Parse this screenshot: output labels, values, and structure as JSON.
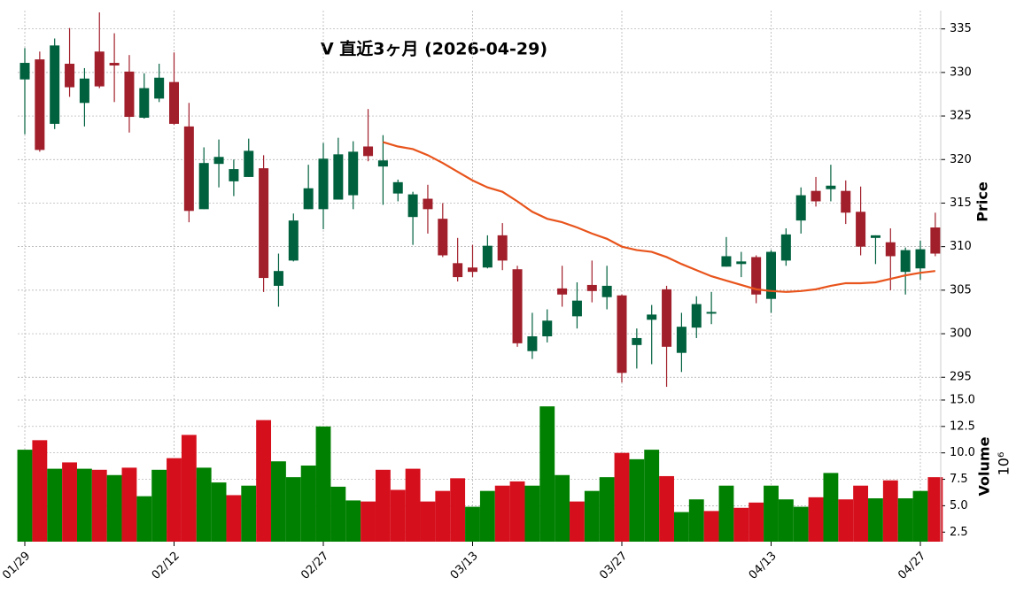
{
  "chart_data": [
    {
      "type": "candlestick",
      "title": "V 直近3ヶ月 (2026-04-29)",
      "y_label": "Price",
      "categories": [
        "01/29",
        null,
        null,
        null,
        null,
        null,
        null,
        null,
        null,
        null,
        "02/12",
        null,
        null,
        null,
        null,
        null,
        null,
        null,
        null,
        null,
        "02/27",
        null,
        null,
        null,
        null,
        null,
        null,
        null,
        null,
        null,
        "03/13",
        null,
        null,
        null,
        null,
        null,
        null,
        null,
        null,
        null,
        "03/27",
        null,
        null,
        null,
        null,
        null,
        null,
        null,
        null,
        null,
        "04/13",
        null,
        null,
        null,
        null,
        null,
        null,
        null,
        null,
        null,
        "04/27",
        null
      ],
      "open": [
        329.2,
        331.5,
        324.1,
        331.0,
        326.5,
        332.4,
        331.1,
        330.1,
        324.8,
        327.0,
        328.9,
        323.8,
        314.3,
        319.5,
        317.5,
        318.0,
        319.0,
        305.5,
        308.4,
        314.3,
        314.3,
        315.4,
        315.9,
        321.5,
        319.2,
        316.1,
        313.4,
        315.5,
        313.2,
        308.1,
        307.6,
        307.6,
        311.3,
        307.4,
        298.0,
        299.7,
        305.2,
        302.0,
        305.6,
        304.2,
        304.4,
        298.7,
        301.6,
        305.1,
        297.8,
        300.7,
        302.3,
        307.7,
        308.0,
        308.8,
        304.0,
        308.4,
        313.0,
        316.4,
        316.6,
        316.4,
        314.0,
        311.0,
        310.5,
        307.1,
        307.5,
        312.2
      ],
      "high": [
        332.8,
        332.4,
        333.9,
        335.1,
        330.5,
        336.9,
        334.5,
        332.0,
        329.9,
        331.0,
        332.3,
        326.5,
        321.4,
        322.3,
        320.0,
        322.4,
        320.5,
        309.2,
        313.8,
        319.4,
        321.9,
        322.5,
        322.1,
        325.8,
        322.8,
        317.7,
        316.3,
        317.1,
        315.0,
        311.0,
        310.2,
        311.3,
        312.7,
        307.8,
        302.4,
        302.8,
        307.8,
        305.9,
        308.4,
        307.8,
        304.5,
        300.6,
        303.3,
        305.5,
        302.4,
        304.3,
        304.8,
        311.1,
        309.4,
        309.0,
        309.6,
        312.1,
        316.8,
        318.0,
        319.4,
        317.6,
        316.9,
        311.3,
        312.1,
        309.9,
        310.7,
        313.9
      ],
      "low": [
        322.9,
        320.9,
        323.5,
        327.2,
        323.8,
        328.2,
        326.6,
        323.1,
        324.7,
        326.6,
        324.0,
        312.8,
        314.3,
        316.8,
        315.8,
        318.0,
        304.8,
        303.1,
        308.3,
        314.3,
        312.0,
        315.4,
        314.3,
        319.8,
        314.8,
        315.2,
        310.2,
        311.5,
        308.8,
        306.0,
        306.5,
        307.5,
        307.3,
        298.5,
        297.1,
        299.0,
        303.1,
        300.6,
        303.6,
        302.8,
        294.4,
        296.0,
        296.5,
        293.9,
        295.6,
        299.5,
        301.1,
        307.7,
        306.5,
        303.5,
        302.4,
        307.8,
        311.5,
        314.6,
        315.2,
        312.6,
        309.0,
        308.0,
        305.0,
        304.5,
        306.2,
        308.9
      ],
      "close": [
        331.1,
        321.1,
        333.1,
        328.3,
        329.3,
        328.4,
        330.8,
        324.9,
        328.2,
        329.4,
        324.1,
        314.1,
        319.6,
        320.3,
        318.9,
        321.0,
        306.4,
        307.2,
        313.0,
        316.7,
        320.1,
        320.6,
        320.9,
        320.4,
        319.9,
        317.4,
        316.0,
        314.3,
        309.0,
        306.5,
        307.1,
        310.1,
        308.4,
        298.9,
        299.7,
        301.5,
        304.5,
        303.8,
        304.9,
        305.5,
        295.5,
        299.5,
        302.2,
        298.5,
        300.8,
        303.4,
        302.5,
        308.9,
        308.3,
        304.5,
        309.4,
        311.4,
        315.9,
        315.2,
        317.0,
        313.9,
        310.0,
        311.3,
        308.9,
        309.6,
        309.7,
        309.2
      ],
      "up_color": "#00613e",
      "down_color": "#a11f2b",
      "ma_values": [
        null,
        null,
        null,
        null,
        null,
        null,
        null,
        null,
        null,
        null,
        null,
        null,
        null,
        null,
        null,
        null,
        null,
        null,
        null,
        null,
        null,
        null,
        null,
        null,
        322.0,
        321.5,
        321.2,
        320.5,
        319.6,
        318.6,
        317.6,
        316.8,
        316.3,
        315.2,
        314.0,
        313.2,
        312.8,
        312.2,
        311.5,
        310.9,
        310.0,
        309.6,
        309.4,
        308.8,
        308.0,
        307.3,
        306.6,
        306.1,
        305.6,
        305.1,
        304.9,
        304.8,
        304.9,
        305.1,
        305.5,
        305.8,
        305.8,
        305.9,
        306.3,
        306.7,
        307.0,
        307.2
      ],
      "ma_color": "#e8541c",
      "ylim": [
        293.5,
        337.1
      ],
      "yticks": [
        295,
        300,
        305,
        310,
        315,
        320,
        325,
        330,
        335
      ],
      "grid": true
    },
    {
      "type": "bar",
      "y_label": "Volume",
      "scale_label": "10⁶",
      "values": [
        10.3,
        11.2,
        8.5,
        9.1,
        8.5,
        8.4,
        7.9,
        8.6,
        5.9,
        8.4,
        9.5,
        11.7,
        8.6,
        7.2,
        6.0,
        6.9,
        13.1,
        9.2,
        7.7,
        8.8,
        12.5,
        6.8,
        5.5,
        5.4,
        8.4,
        6.5,
        8.5,
        5.4,
        6.4,
        7.6,
        4.9,
        6.4,
        6.9,
        7.3,
        6.9,
        14.4,
        7.9,
        5.4,
        6.4,
        7.7,
        10.0,
        9.4,
        10.3,
        7.8,
        4.4,
        5.6,
        4.5,
        6.9,
        4.8,
        5.3,
        6.9,
        5.6,
        4.9,
        5.8,
        8.1,
        5.6,
        6.9,
        5.7,
        7.4,
        5.7,
        6.4,
        7.7
      ],
      "colors": [
        "#008000",
        "#d60f1c",
        "#008000",
        "#d60f1c",
        "#008000",
        "#d60f1c",
        "#008000",
        "#d60f1c",
        "#008000",
        "#008000",
        "#d60f1c",
        "#d60f1c",
        "#008000",
        "#008000",
        "#d60f1c",
        "#008000",
        "#d60f1c",
        "#008000",
        "#008000",
        "#008000",
        "#008000",
        "#008000",
        "#008000",
        "#d60f1c",
        "#d60f1c",
        "#d60f1c",
        "#d60f1c",
        "#d60f1c",
        "#d60f1c",
        "#d60f1c",
        "#008000",
        "#008000",
        "#d60f1c",
        "#d60f1c",
        "#008000",
        "#008000",
        "#008000",
        "#d60f1c",
        "#008000",
        "#008000",
        "#d60f1c",
        "#008000",
        "#008000",
        "#d60f1c",
        "#008000",
        "#008000",
        "#d60f1c",
        "#008000",
        "#d60f1c",
        "#d60f1c",
        "#008000",
        "#008000",
        "#008000",
        "#d60f1c",
        "#008000",
        "#d60f1c",
        "#d60f1c",
        "#008000",
        "#d60f1c",
        "#008000",
        "#008000",
        "#d60f1c"
      ],
      "ylim": [
        1.6,
        15.5
      ],
      "yticks": [
        2.5,
        {
          "value": 5,
          "label": "5.0"
        },
        7.5,
        {
          "value": 10,
          "label": "10.0"
        },
        12.5,
        {
          "value": 15,
          "label": "15.0"
        }
      ],
      "grid": true
    }
  ]
}
